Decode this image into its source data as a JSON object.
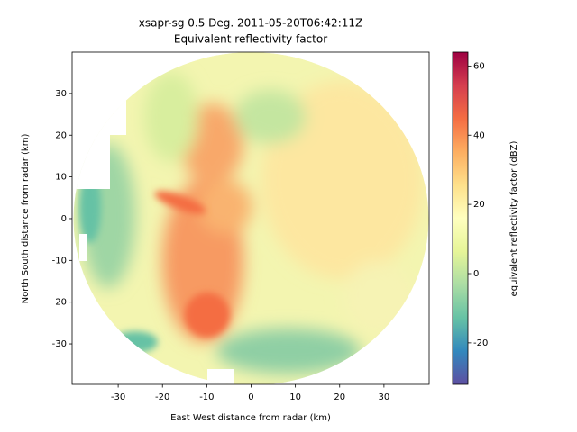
{
  "chart_data": {
    "type": "radar-ppi",
    "title": "xsapr-sg 0.5 Deg. 2011-05-20T06:42:11Z",
    "subtitle": "Equivalent reflectivity factor",
    "x_label": "East West distance from radar (km)",
    "y_label": "North South distance from radar (km)",
    "colorbar_label": "equivalent reflectivity factor (dBZ)",
    "xlim": [
      -40.4,
      40.2
    ],
    "xticks": [
      -30,
      -20,
      -10,
      0,
      10,
      20,
      30
    ],
    "ylim": [
      -39.7,
      39.9
    ],
    "yticks": [
      -30,
      -20,
      -10,
      0,
      10,
      20,
      30
    ],
    "clim": [
      -32,
      64
    ],
    "cticks": [
      -20,
      0,
      20,
      40,
      60
    ],
    "colormap": [
      "#5e4fa2",
      "#3288bd",
      "#66c2a5",
      "#abdda4",
      "#e6f598",
      "#ffffbf",
      "#fee08b",
      "#fdae61",
      "#f46d43",
      "#d53e4f",
      "#9e0142"
    ]
  }
}
